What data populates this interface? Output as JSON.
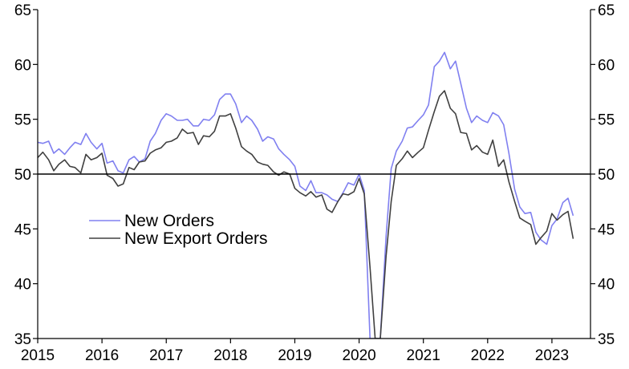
{
  "chart_data": {
    "type": "line",
    "title": "",
    "xlabel": "",
    "ylabel": "",
    "ylim": [
      35,
      65
    ],
    "y_ticks": [
      35,
      40,
      45,
      50,
      55,
      60,
      65
    ],
    "y_axes": "left and right (mirrored)",
    "xlim": [
      2015,
      2023.6
    ],
    "x_ticks": [
      "2015",
      "2016",
      "2017",
      "2018",
      "2019",
      "2020",
      "2021",
      "2022",
      "2023"
    ],
    "reference_line": 50,
    "grid": false,
    "legend_position": "lower-left, inside plot",
    "series": [
      {
        "name": "New Orders",
        "color": "#8080f0",
        "x": [
          2015.0,
          2015.08,
          2015.17,
          2015.25,
          2015.33,
          2015.42,
          2015.5,
          2015.58,
          2015.67,
          2015.75,
          2015.83,
          2015.92,
          2016.0,
          2016.08,
          2016.17,
          2016.25,
          2016.33,
          2016.42,
          2016.5,
          2016.58,
          2016.67,
          2016.75,
          2016.83,
          2016.92,
          2017.0,
          2017.08,
          2017.17,
          2017.25,
          2017.33,
          2017.42,
          2017.5,
          2017.58,
          2017.67,
          2017.75,
          2017.83,
          2017.92,
          2018.0,
          2018.08,
          2018.17,
          2018.25,
          2018.33,
          2018.42,
          2018.5,
          2018.58,
          2018.67,
          2018.75,
          2018.83,
          2018.92,
          2019.0,
          2019.08,
          2019.17,
          2019.25,
          2019.33,
          2019.42,
          2019.5,
          2019.58,
          2019.67,
          2019.75,
          2019.83,
          2019.92,
          2020.0,
          2020.08,
          2020.17,
          2020.25,
          2020.33,
          2020.42,
          2020.5,
          2020.58,
          2020.67,
          2020.75,
          2020.83,
          2020.92,
          2021.0,
          2021.08,
          2021.17,
          2021.25,
          2021.33,
          2021.42,
          2021.5,
          2021.58,
          2021.67,
          2021.75,
          2021.83,
          2021.92,
          2022.0,
          2022.08,
          2022.17,
          2022.25,
          2022.33,
          2022.42,
          2022.5,
          2022.58,
          2022.67,
          2022.75,
          2022.83,
          2022.92,
          2023.0,
          2023.08,
          2023.17,
          2023.25,
          2023.33
        ],
        "values": [
          52.9,
          52.8,
          53.0,
          51.9,
          52.3,
          51.8,
          52.4,
          52.9,
          52.7,
          53.7,
          52.9,
          52.3,
          52.8,
          51.0,
          51.2,
          50.3,
          50.1,
          51.3,
          51.6,
          51.1,
          51.4,
          53.0,
          53.7,
          54.9,
          55.5,
          55.3,
          54.9,
          54.9,
          55.0,
          54.4,
          54.4,
          55.0,
          54.9,
          55.4,
          56.8,
          57.3,
          57.3,
          56.4,
          54.7,
          55.3,
          54.9,
          54.1,
          53.0,
          53.4,
          53.2,
          52.3,
          51.8,
          51.3,
          50.7,
          48.9,
          48.5,
          49.4,
          48.3,
          48.3,
          48.1,
          47.7,
          47.5,
          48.3,
          49.2,
          49.0,
          50.0,
          48.5,
          35.0,
          35.0,
          35.0,
          44.3,
          50.5,
          52.1,
          53.0,
          54.2,
          54.3,
          54.9,
          55.4,
          56.3,
          59.8,
          60.3,
          61.1,
          59.6,
          60.3,
          58.3,
          56.0,
          54.7,
          55.3,
          54.9,
          54.7,
          55.6,
          55.3,
          54.5,
          51.9,
          48.6,
          47.0,
          46.4,
          46.5,
          44.7,
          44.0,
          43.6,
          45.3,
          45.9,
          47.4,
          47.8,
          46.2
        ]
      },
      {
        "name": "New Export Orders",
        "color": "#404040",
        "x": [
          2015.0,
          2015.08,
          2015.17,
          2015.25,
          2015.33,
          2015.42,
          2015.5,
          2015.58,
          2015.67,
          2015.75,
          2015.83,
          2015.92,
          2016.0,
          2016.08,
          2016.17,
          2016.25,
          2016.33,
          2016.42,
          2016.5,
          2016.58,
          2016.67,
          2016.75,
          2016.83,
          2016.92,
          2017.0,
          2017.08,
          2017.17,
          2017.25,
          2017.33,
          2017.42,
          2017.5,
          2017.58,
          2017.67,
          2017.75,
          2017.83,
          2017.92,
          2018.0,
          2018.08,
          2018.17,
          2018.25,
          2018.33,
          2018.42,
          2018.5,
          2018.58,
          2018.67,
          2018.75,
          2018.83,
          2018.92,
          2019.0,
          2019.08,
          2019.17,
          2019.25,
          2019.33,
          2019.42,
          2019.5,
          2019.58,
          2019.67,
          2019.75,
          2019.83,
          2019.92,
          2020.0,
          2020.08,
          2020.17,
          2020.25,
          2020.33,
          2020.42,
          2020.5,
          2020.58,
          2020.67,
          2020.75,
          2020.83,
          2020.92,
          2021.0,
          2021.08,
          2021.17,
          2021.25,
          2021.33,
          2021.42,
          2021.5,
          2021.58,
          2021.67,
          2021.75,
          2021.83,
          2021.92,
          2022.0,
          2022.08,
          2022.17,
          2022.25,
          2022.33,
          2022.42,
          2022.5,
          2022.58,
          2022.67,
          2022.75,
          2022.83,
          2022.92,
          2023.0,
          2023.08,
          2023.17,
          2023.25,
          2023.33
        ],
        "values": [
          51.5,
          52.0,
          51.3,
          50.3,
          50.9,
          51.3,
          50.7,
          50.6,
          50.1,
          51.8,
          51.3,
          51.5,
          51.9,
          49.9,
          49.6,
          48.9,
          49.1,
          50.6,
          50.4,
          51.1,
          51.2,
          51.9,
          52.2,
          52.4,
          52.9,
          53.0,
          53.3,
          54.1,
          53.7,
          53.8,
          52.7,
          53.5,
          53.4,
          53.9,
          55.3,
          55.3,
          55.5,
          54.2,
          52.5,
          52.1,
          51.8,
          51.1,
          50.9,
          50.8,
          50.2,
          49.9,
          50.2,
          50.0,
          48.7,
          48.3,
          48.0,
          48.4,
          47.9,
          48.1,
          46.8,
          46.5,
          47.5,
          48.2,
          48.1,
          48.4,
          49.6,
          48.2,
          41.5,
          35.0,
          35.0,
          42.5,
          47.5,
          50.8,
          51.4,
          52.1,
          51.5,
          52.0,
          52.4,
          54.0,
          55.7,
          57.1,
          57.6,
          56.0,
          55.5,
          53.8,
          53.7,
          52.2,
          52.6,
          52.0,
          51.8,
          53.1,
          50.7,
          51.3,
          49.3,
          47.5,
          46.0,
          45.7,
          45.4,
          43.6,
          44.2,
          44.8,
          46.4,
          45.8,
          46.3,
          46.6,
          44.1
        ]
      }
    ]
  }
}
